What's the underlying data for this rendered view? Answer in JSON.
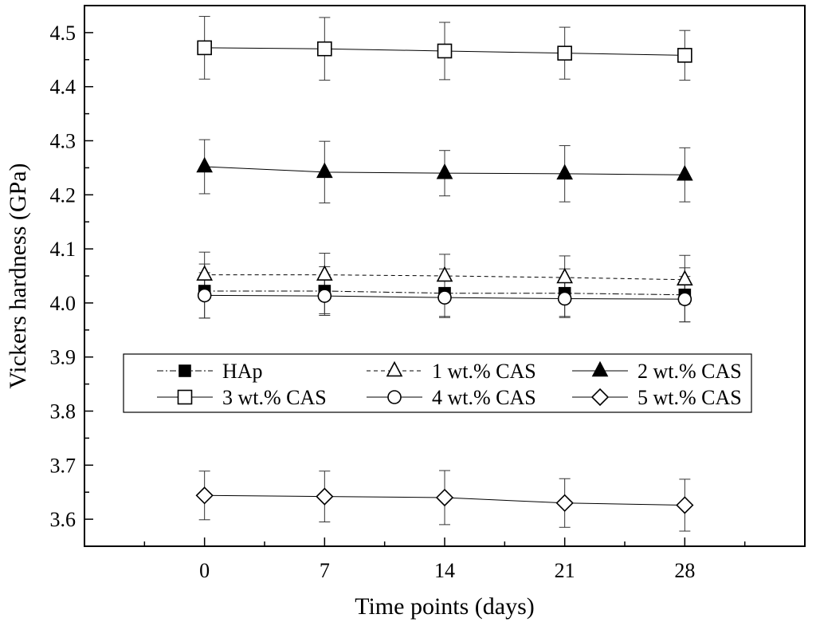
{
  "chart_data": {
    "type": "line",
    "title": "",
    "xlabel": "Time points (days)",
    "ylabel": "Vickers hardness (GPa)",
    "x": [
      0,
      7,
      14,
      21,
      28
    ],
    "x_tick_labels": [
      "0",
      "7",
      "14",
      "21",
      "28"
    ],
    "xlim": [
      -7,
      35
    ],
    "ylim": [
      3.55,
      4.55
    ],
    "y_ticks": [
      3.6,
      3.7,
      3.8,
      3.9,
      4.0,
      4.1,
      4.2,
      4.3,
      4.4,
      4.5
    ],
    "y_tick_labels": [
      "3.6",
      "3.7",
      "3.8",
      "3.9",
      "4.0",
      "4.1",
      "4.2",
      "4.3",
      "4.4",
      "4.5"
    ],
    "grid": false,
    "legend_position": "center",
    "series": [
      {
        "name": "HAp",
        "marker": "square-filled",
        "line_style": "dash-dot",
        "values": [
          4.022,
          4.022,
          4.018,
          4.018,
          4.015
        ],
        "errors": [
          0.05,
          0.045,
          0.045,
          0.045,
          0.05
        ]
      },
      {
        "name": "1 wt.% CAS",
        "marker": "triangle-open",
        "line_style": "dashed",
        "values": [
          4.052,
          4.052,
          4.05,
          4.047,
          4.043
        ],
        "errors": [
          0.042,
          0.04,
          0.04,
          0.04,
          0.045
        ]
      },
      {
        "name": "2 wt.% CAS",
        "marker": "triangle-filled",
        "line_style": "solid",
        "values": [
          4.252,
          4.242,
          4.24,
          4.239,
          4.237
        ],
        "errors": [
          0.05,
          0.057,
          0.042,
          0.052,
          0.05
        ]
      },
      {
        "name": "3 wt.% CAS",
        "marker": "square-open",
        "line_style": "solid",
        "values": [
          4.472,
          4.47,
          4.466,
          4.462,
          4.458
        ],
        "errors": [
          0.058,
          0.058,
          0.053,
          0.048,
          0.046
        ]
      },
      {
        "name": "4 wt.% CAS",
        "marker": "circle-open",
        "line_style": "solid",
        "values": [
          4.014,
          4.013,
          4.01,
          4.008,
          4.007
        ],
        "errors": [
          0.042,
          0.033,
          0.035,
          0.033,
          0.042
        ]
      },
      {
        "name": "5 wt.% CAS",
        "marker": "diamond-open",
        "line_style": "solid",
        "values": [
          3.644,
          3.642,
          3.64,
          3.63,
          3.626
        ],
        "errors": [
          0.045,
          0.047,
          0.05,
          0.045,
          0.048
        ]
      }
    ]
  }
}
